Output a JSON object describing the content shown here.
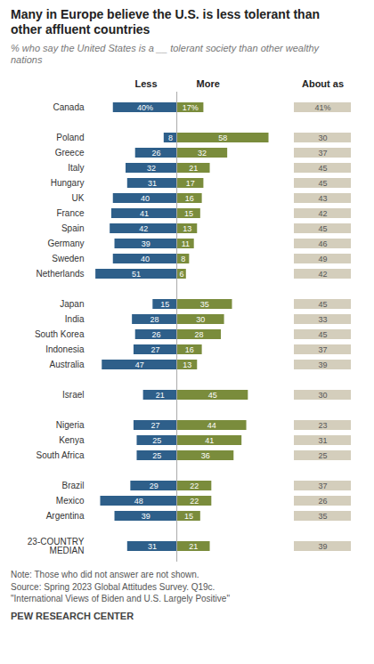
{
  "chart_data": {
    "type": "bar",
    "orientation": "horizontal",
    "title": "Many in Europe believe the U.S. is less tolerant than\nother affluent countries",
    "subtitle": "% who say the United States is a __ tolerant society than other wealthy\nnations",
    "categories": [
      "Canada",
      null,
      "Poland",
      "Greece",
      "Italy",
      "Hungary",
      "UK",
      "France",
      "Spain",
      "Germany",
      "Sweden",
      "Netherlands",
      null,
      "Japan",
      "India",
      "South Korea",
      "Indonesia",
      "Australia",
      null,
      "Israel",
      null,
      "Nigeria",
      "Kenya",
      "South Africa",
      null,
      "Brazil",
      "Mexico",
      "Argentina",
      null,
      "23-COUNTRY\nMEDIAN"
    ],
    "series": [
      {
        "name": "Less",
        "color": "#2E5F8A",
        "values": [
          40,
          null,
          8,
          26,
          32,
          31,
          40,
          41,
          42,
          39,
          40,
          51,
          null,
          15,
          28,
          26,
          27,
          47,
          null,
          21,
          null,
          27,
          25,
          25,
          null,
          29,
          48,
          39,
          null,
          31
        ],
        "value_labels": [
          "40%",
          null,
          "8",
          "26",
          "32",
          "31",
          "40",
          "41",
          "42",
          "39",
          "40",
          "51",
          null,
          "15",
          "28",
          "26",
          "27",
          "47",
          null,
          "21",
          null,
          "27",
          "25",
          "25",
          null,
          "29",
          "48",
          "39",
          null,
          "31"
        ]
      },
      {
        "name": "More",
        "color": "#7A8C3C",
        "values": [
          17,
          null,
          58,
          32,
          21,
          17,
          16,
          15,
          13,
          11,
          8,
          6,
          null,
          35,
          30,
          28,
          16,
          13,
          null,
          45,
          null,
          44,
          41,
          36,
          null,
          22,
          22,
          15,
          null,
          21
        ],
        "value_labels": [
          "17%",
          null,
          "58",
          "32",
          "21",
          "17",
          "16",
          "15",
          "13",
          "11",
          "8",
          "6",
          null,
          "35",
          "30",
          "28",
          "16",
          "13",
          null,
          "45",
          null,
          "44",
          "41",
          "36",
          null,
          "22",
          "22",
          "15",
          null,
          "21"
        ]
      },
      {
        "name": "About as",
        "color": "#D4CEBC",
        "values": [
          41,
          null,
          30,
          37,
          45,
          45,
          43,
          42,
          45,
          46,
          49,
          42,
          null,
          45,
          33,
          45,
          37,
          39,
          null,
          30,
          null,
          23,
          31,
          25,
          null,
          37,
          26,
          35,
          null,
          39
        ],
        "value_labels": [
          "41%",
          null,
          "30",
          "37",
          "45",
          "45",
          "43",
          "42",
          "45",
          "46",
          "49",
          "42",
          null,
          "45",
          "33",
          "45",
          "37",
          "39",
          null,
          "30",
          null,
          "23",
          "31",
          "25",
          null,
          "37",
          "26",
          "35",
          null,
          "39"
        ]
      }
    ],
    "xlim": [
      -55,
      65
    ],
    "data_labels": true,
    "tick_labels": "y",
    "notes": [
      "Note: Those who did not answer are not shown.",
      "Source: Spring 2023 Global Attitudes Survey. Q19c.",
      "\"International Views of Biden and U.S. Largely Positive\""
    ],
    "credit": "PEW RESEARCH CENTER"
  }
}
